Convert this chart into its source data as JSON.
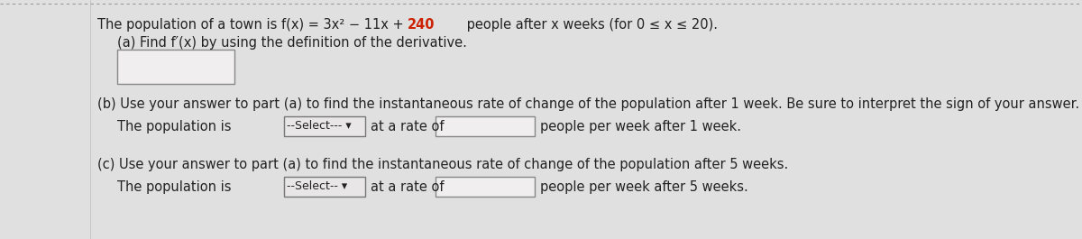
{
  "background_color": "#e0e0e0",
  "top_border_color": "#999999",
  "title_before": "The population of a town is f(x) = 3x² − 11x + ",
  "title_red": "240",
  "title_after": " people after x weeks (for 0 ≤ x ≤ 20).",
  "title_highlight_color": "#cc2200",
  "part_a_label": "(a) Find f′(x) by using the definition of the derivative.",
  "part_b_label": "(b) Use your answer to part (a) to find the instantaneous rate of change of the population after 1 week. Be sure to interpret the sign of your answer.",
  "part_b_sentence": "The population is",
  "part_b_dropdown": "--Select---",
  "part_b_middle": "at a rate of",
  "part_b_end": "people per week after 1 week.",
  "part_c_label": "(c) Use your answer to part (a) to find the instantaneous rate of change of the population after 5 weeks.",
  "part_c_sentence": "The population is",
  "part_c_dropdown": "--Select--",
  "part_c_middle": "at a rate of",
  "part_c_end": "people per week after 5 weeks.",
  "font_size": 10.5,
  "text_color": "#222222",
  "box_facecolor": "#f0eeee",
  "box_edgecolor": "#888888",
  "dropdown_facecolor": "#e8e6e6",
  "dropdown_edgecolor": "#777777"
}
